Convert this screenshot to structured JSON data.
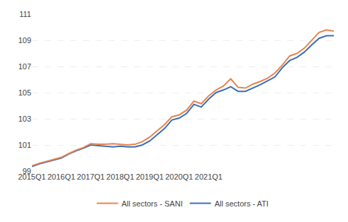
{
  "chart_data": {
    "type": "line",
    "categories": [
      "2015Q1",
      null,
      null,
      null,
      "2016Q1",
      null,
      null,
      null,
      "2017Q1",
      null,
      null,
      null,
      "2018Q1",
      null,
      null,
      null,
      "2019Q1",
      null,
      null,
      null,
      "2020Q1",
      null,
      null,
      null,
      "2021Q1",
      null,
      null,
      null,
      null,
      null,
      null,
      null,
      null,
      null,
      null,
      null,
      null,
      null,
      null,
      null,
      null,
      null
    ],
    "series": [
      {
        "name": "All sectors - ATI",
        "color": "#3A6EBA",
        "values": [
          99.35,
          99.55,
          99.7,
          99.85,
          100.0,
          100.3,
          100.55,
          100.75,
          101.0,
          100.95,
          100.9,
          100.85,
          100.9,
          100.85,
          100.85,
          101.0,
          101.3,
          101.75,
          102.25,
          102.9,
          103.05,
          103.4,
          104.1,
          103.9,
          104.5,
          105.0,
          105.2,
          105.45,
          105.1,
          105.1,
          105.35,
          105.6,
          105.9,
          106.2,
          106.9,
          107.45,
          107.7,
          108.1,
          108.65,
          109.15,
          109.35,
          109.35
        ]
      },
      {
        "name": "All sectors - SANI",
        "color": "#E8834E",
        "values": [
          99.4,
          99.6,
          99.75,
          99.9,
          100.05,
          100.35,
          100.6,
          100.8,
          101.1,
          101.05,
          101.05,
          101.1,
          101.05,
          101.0,
          101.05,
          101.25,
          101.6,
          102.05,
          102.55,
          103.15,
          103.3,
          103.65,
          104.35,
          104.15,
          104.75,
          105.2,
          105.5,
          106.05,
          105.4,
          105.35,
          105.65,
          105.85,
          106.1,
          106.5,
          107.1,
          107.8,
          108.0,
          108.4,
          109.0,
          109.6,
          109.8,
          109.7
        ]
      }
    ],
    "ylim": [
      99,
      111
    ],
    "yticks": [
      99,
      101,
      103,
      105,
      107,
      109,
      111
    ],
    "grid": true,
    "legend": "bottom"
  }
}
